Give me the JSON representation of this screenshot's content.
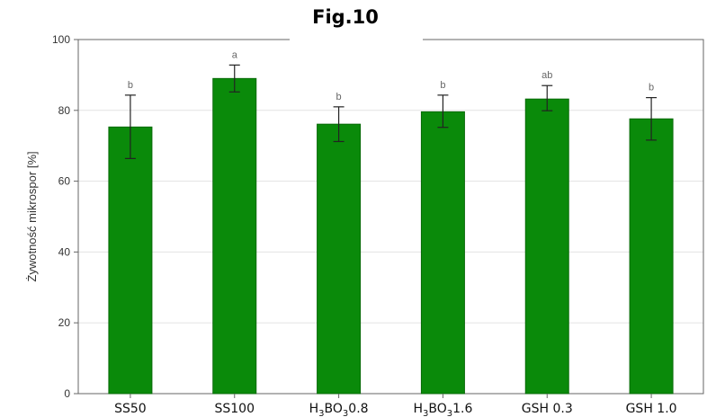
{
  "chart_data": {
    "type": "bar",
    "title": "Fig.10",
    "ylabel": "Żywotność mikrospor [%]",
    "xlabel": "",
    "ylim": [
      0,
      100
    ],
    "yticks": [
      0,
      20,
      40,
      60,
      80,
      100
    ],
    "grid": true,
    "categories": [
      {
        "base": "SS50",
        "sub": "",
        "mid": "",
        "sub2": "",
        "tail": ""
      },
      {
        "base": "SS100",
        "sub": "",
        "mid": "",
        "sub2": "",
        "tail": ""
      },
      {
        "base": "H",
        "sub": "3",
        "mid": "BO",
        "sub2": "3",
        "tail": "0.8"
      },
      {
        "base": "H",
        "sub": "3",
        "mid": "BO",
        "sub2": "3",
        "tail": "1.6"
      },
      {
        "base": "GSH 0.3",
        "sub": "",
        "mid": "",
        "sub2": "",
        "tail": ""
      },
      {
        "base": "GSH 1.0",
        "sub": "",
        "mid": "",
        "sub2": "",
        "tail": ""
      }
    ],
    "values": [
      75.3,
      89.0,
      76.1,
      79.6,
      83.2,
      77.6
    ],
    "error_low": [
      66.4,
      85.2,
      71.2,
      75.2,
      79.9,
      71.6
    ],
    "error_high": [
      84.3,
      92.8,
      81.0,
      84.3,
      87.0,
      83.6
    ],
    "significance": [
      "b",
      "a",
      "b",
      "b",
      "ab",
      "b"
    ],
    "bar_color": "#0a8a0a",
    "bar_border": "#086a08"
  }
}
